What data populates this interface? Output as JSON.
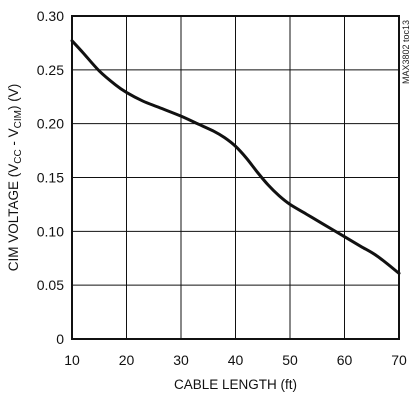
{
  "chart_data": {
    "type": "line",
    "title": "",
    "xlabel": "CABLE LENGTH (ft)",
    "ylabel": {
      "prefix": "CIM VOLTAGE (V",
      "sub1": "CC",
      "middle": " - V",
      "sub2": "CIM",
      "suffix": ") (V)"
    },
    "xlim": [
      10,
      70
    ],
    "ylim": [
      0,
      0.3
    ],
    "xticks": [
      10,
      20,
      30,
      40,
      50,
      60,
      70
    ],
    "xtick_labels": [
      "10",
      "20",
      "30",
      "40",
      "50",
      "60",
      "70"
    ],
    "yticks": [
      0,
      0.05,
      0.1,
      0.15,
      0.2,
      0.25,
      0.3
    ],
    "ytick_labels": [
      "0",
      "0.05",
      "0.10",
      "0.15",
      "0.20",
      "0.25",
      "0.30"
    ],
    "grid": true,
    "series": [
      {
        "x": [
          10,
          12,
          15,
          18,
          20,
          23,
          26,
          30,
          33,
          36,
          38,
          40,
          42,
          44,
          46,
          48,
          50,
          53,
          56,
          60,
          63,
          66,
          70
        ],
        "y": [
          0.277,
          0.266,
          0.249,
          0.236,
          0.229,
          0.221,
          0.215,
          0.207,
          0.2,
          0.193,
          0.187,
          0.179,
          0.168,
          0.155,
          0.143,
          0.133,
          0.125,
          0.116,
          0.107,
          0.095,
          0.086,
          0.077,
          0.061
        ]
      }
    ],
    "annotation": "MAX3802 toc13"
  }
}
